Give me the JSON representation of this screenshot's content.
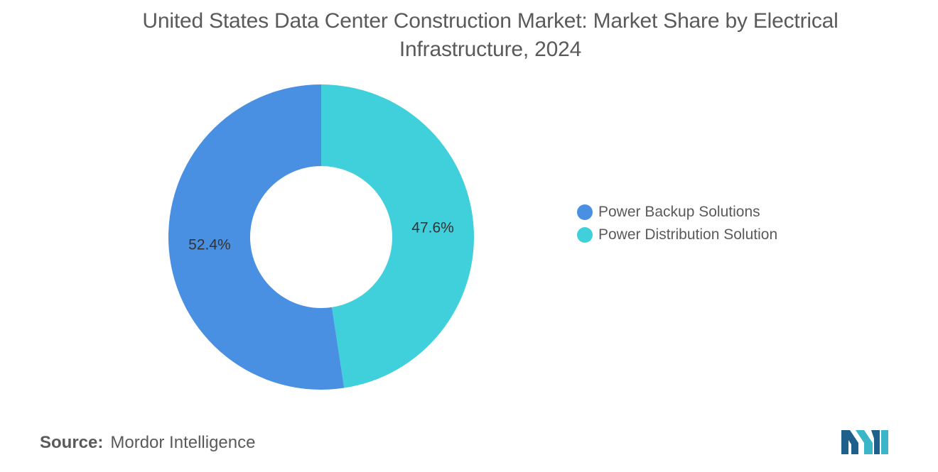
{
  "title": "United States Data Center Construction Market: Market Share by Electrical Infrastructure, 2024",
  "source": {
    "prefix": "Source:",
    "name": "Mordor Intelligence"
  },
  "chart_data": {
    "type": "pie",
    "donut": true,
    "title": "United States Data Center Construction Market: Market Share by Electrical Infrastructure, 2024",
    "categories": [
      "Power Backup Solutions",
      "Power Distribution Solution"
    ],
    "values": [
      52.4,
      47.6
    ],
    "data_labels": [
      "52.4%",
      "47.6%"
    ],
    "colors": [
      "#4a90e2",
      "#40d0db"
    ],
    "legend_position": "right"
  },
  "logo": {
    "icon": "mordor-intelligence-logo-icon",
    "colors": [
      "#1f5f8b",
      "#3ab6c8"
    ]
  }
}
